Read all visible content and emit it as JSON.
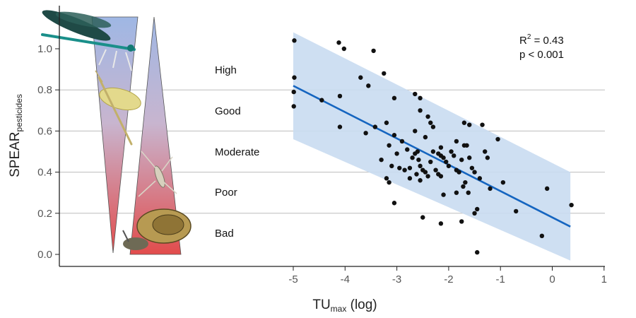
{
  "chart_data": {
    "type": "scatter",
    "xlabel_main": "TU",
    "xlabel_sub": "max",
    "xlabel_tail": " (log)",
    "ylabel_main": "SPEAR",
    "ylabel_sub": "pesticides",
    "xlim": [
      -6.1,
      1
    ],
    "ylim": [
      -0.05,
      1.18
    ],
    "x_ticks": [
      -5,
      -4,
      -3,
      -2,
      -1,
      0,
      1
    ],
    "x_tick_labels": [
      "-5",
      "-4",
      "-3",
      "-2",
      "-1",
      "0",
      "1"
    ],
    "y_ticks": [
      0.0,
      0.2,
      0.4,
      0.6,
      0.8,
      1.0
    ],
    "y_tick_labels": [
      "0.0",
      "0.2",
      "0.4",
      "0.6",
      "0.8",
      "1.0"
    ],
    "grid_y": [
      0.2,
      0.4,
      0.6,
      0.8
    ],
    "quality_classes": [
      "High",
      "Good",
      "Moderate",
      "Poor",
      "Bad"
    ],
    "stats": {
      "r2_label": "R",
      "r2_sup": "2",
      "r2_value": " =  0.43",
      "p_text": "p < 0.001"
    },
    "regression": {
      "x_start": -5.0,
      "y_start": 0.82,
      "x_end": 0.35,
      "y_end": 0.135
    },
    "band": {
      "x_start": -5.0,
      "upper_start": 1.08,
      "lower_start": 0.56,
      "x_end": 0.35,
      "upper_end": 0.4,
      "lower_end": -0.03
    },
    "points": [
      {
        "x": -4.98,
        "y": 1.04
      },
      {
        "x": -4.98,
        "y": 0.86
      },
      {
        "x": -4.99,
        "y": 0.79
      },
      {
        "x": -4.99,
        "y": 0.72
      },
      {
        "x": -4.45,
        "y": 0.75
      },
      {
        "x": -4.12,
        "y": 1.03
      },
      {
        "x": -4.02,
        "y": 1.0
      },
      {
        "x": -4.1,
        "y": 0.77
      },
      {
        "x": -4.1,
        "y": 0.62
      },
      {
        "x": -3.7,
        "y": 0.86
      },
      {
        "x": -3.55,
        "y": 0.82
      },
      {
        "x": -3.45,
        "y": 0.99
      },
      {
        "x": -3.25,
        "y": 0.88
      },
      {
        "x": -3.6,
        "y": 0.59
      },
      {
        "x": -3.42,
        "y": 0.62
      },
      {
        "x": -3.2,
        "y": 0.64
      },
      {
        "x": -3.05,
        "y": 0.76
      },
      {
        "x": -3.05,
        "y": 0.58
      },
      {
        "x": -3.3,
        "y": 0.46
      },
      {
        "x": -3.15,
        "y": 0.53
      },
      {
        "x": -3.0,
        "y": 0.49
      },
      {
        "x": -2.9,
        "y": 0.55
      },
      {
        "x": -2.8,
        "y": 0.51
      },
      {
        "x": -3.1,
        "y": 0.43
      },
      {
        "x": -3.2,
        "y": 0.37
      },
      {
        "x": -3.15,
        "y": 0.35
      },
      {
        "x": -3.05,
        "y": 0.25
      },
      {
        "x": -2.95,
        "y": 0.42
      },
      {
        "x": -2.85,
        "y": 0.41
      },
      {
        "x": -2.75,
        "y": 0.42
      },
      {
        "x": -2.7,
        "y": 0.47
      },
      {
        "x": -2.65,
        "y": 0.49
      },
      {
        "x": -2.6,
        "y": 0.5
      },
      {
        "x": -2.58,
        "y": 0.46
      },
      {
        "x": -2.55,
        "y": 0.43
      },
      {
        "x": -2.5,
        "y": 0.41
      },
      {
        "x": -2.62,
        "y": 0.39
      },
      {
        "x": -2.45,
        "y": 0.4
      },
      {
        "x": -2.4,
        "y": 0.38
      },
      {
        "x": -2.75,
        "y": 0.37
      },
      {
        "x": -2.55,
        "y": 0.36
      },
      {
        "x": -2.35,
        "y": 0.45
      },
      {
        "x": -2.3,
        "y": 0.5
      },
      {
        "x": -2.2,
        "y": 0.49
      },
      {
        "x": -2.15,
        "y": 0.52
      },
      {
        "x": -2.1,
        "y": 0.47
      },
      {
        "x": -2.05,
        "y": 0.45
      },
      {
        "x": -2.0,
        "y": 0.43
      },
      {
        "x": -2.25,
        "y": 0.41
      },
      {
        "x": -2.2,
        "y": 0.39
      },
      {
        "x": -2.15,
        "y": 0.38
      },
      {
        "x": -1.95,
        "y": 0.5
      },
      {
        "x": -1.9,
        "y": 0.48
      },
      {
        "x": -1.85,
        "y": 0.41
      },
      {
        "x": -1.8,
        "y": 0.4
      },
      {
        "x": -1.75,
        "y": 0.46
      },
      {
        "x": -1.7,
        "y": 0.53
      },
      {
        "x": -1.65,
        "y": 0.53
      },
      {
        "x": -1.6,
        "y": 0.47
      },
      {
        "x": -1.55,
        "y": 0.42
      },
      {
        "x": -1.5,
        "y": 0.4
      },
      {
        "x": -1.68,
        "y": 0.35
      },
      {
        "x": -1.72,
        "y": 0.33
      },
      {
        "x": -1.62,
        "y": 0.3
      },
      {
        "x": -1.3,
        "y": 0.5
      },
      {
        "x": -1.25,
        "y": 0.47
      },
      {
        "x": -1.4,
        "y": 0.37
      },
      {
        "x": -1.2,
        "y": 0.32
      },
      {
        "x": -2.65,
        "y": 0.78
      },
      {
        "x": -2.55,
        "y": 0.76
      },
      {
        "x": -2.55,
        "y": 0.7
      },
      {
        "x": -2.4,
        "y": 0.67
      },
      {
        "x": -2.35,
        "y": 0.64
      },
      {
        "x": -2.3,
        "y": 0.62
      },
      {
        "x": -2.65,
        "y": 0.6
      },
      {
        "x": -2.45,
        "y": 0.57
      },
      {
        "x": -1.7,
        "y": 0.64
      },
      {
        "x": -1.6,
        "y": 0.63
      },
      {
        "x": -1.35,
        "y": 0.63
      },
      {
        "x": -1.85,
        "y": 0.55
      },
      {
        "x": -2.15,
        "y": 0.48
      },
      {
        "x": -1.05,
        "y": 0.56
      },
      {
        "x": -0.95,
        "y": 0.35
      },
      {
        "x": -2.1,
        "y": 0.29
      },
      {
        "x": -1.85,
        "y": 0.3
      },
      {
        "x": -2.5,
        "y": 0.18
      },
      {
        "x": -2.15,
        "y": 0.15
      },
      {
        "x": -1.75,
        "y": 0.16
      },
      {
        "x": -1.45,
        "y": 0.22
      },
      {
        "x": -1.5,
        "y": 0.2
      },
      {
        "x": -1.45,
        "y": 0.01
      },
      {
        "x": -0.7,
        "y": 0.21
      },
      {
        "x": -0.2,
        "y": 0.09
      },
      {
        "x": -0.1,
        "y": 0.32
      },
      {
        "x": 0.37,
        "y": 0.24
      }
    ]
  },
  "colors": {
    "band": "#c9dcf1",
    "line": "#1565c0",
    "points": "#111111",
    "grid": "#bdbdbd",
    "axis": "#222222",
    "triangle_top": "#9fb7e4",
    "triangle_bottom": "#e24c4c"
  },
  "illustrations": [
    "dragonfly-image",
    "mayfly-image",
    "water-strider-image",
    "snail-image"
  ]
}
